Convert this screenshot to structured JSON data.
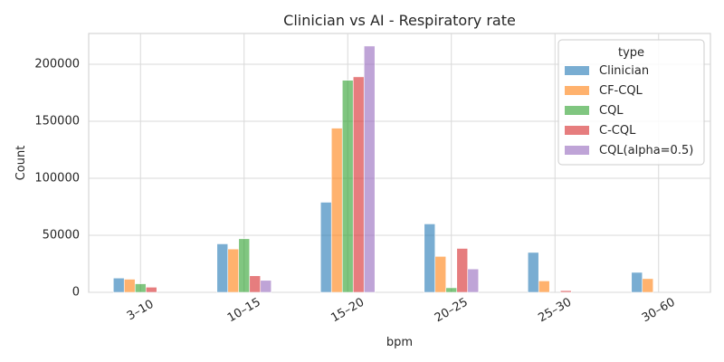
{
  "chart_data": {
    "type": "bar",
    "title": "Clinician vs AI - Respiratory rate",
    "xlabel": "bpm",
    "ylabel": "Count",
    "categories": [
      "3–10",
      "10–15",
      "15–20",
      "20–25",
      "25–30",
      "30–60"
    ],
    "yticks": [
      0,
      50000,
      100000,
      150000,
      200000
    ],
    "ylim": [
      0,
      227000
    ],
    "grid": true,
    "legend_title": "type",
    "legend_position": "top-right",
    "series": [
      {
        "name": "Clinician",
        "color": "#1f77b4",
        "values": [
          12500,
          42500,
          79000,
          60000,
          35000,
          17500
        ]
      },
      {
        "name": "CF-CQL",
        "color": "#ff7f0e",
        "values": [
          11500,
          38000,
          144000,
          31500,
          10000,
          12000
        ]
      },
      {
        "name": "CQL",
        "color": "#2ca02c",
        "values": [
          7500,
          47000,
          186000,
          4000,
          0,
          0
        ]
      },
      {
        "name": "C-CQL",
        "color": "#d62728",
        "values": [
          4500,
          14500,
          189000,
          38500,
          1500,
          0
        ]
      },
      {
        "name": "CQL(alpha=0.5)",
        "color": "#9467bd",
        "values": [
          0,
          10500,
          216000,
          20500,
          0,
          0
        ]
      }
    ]
  }
}
